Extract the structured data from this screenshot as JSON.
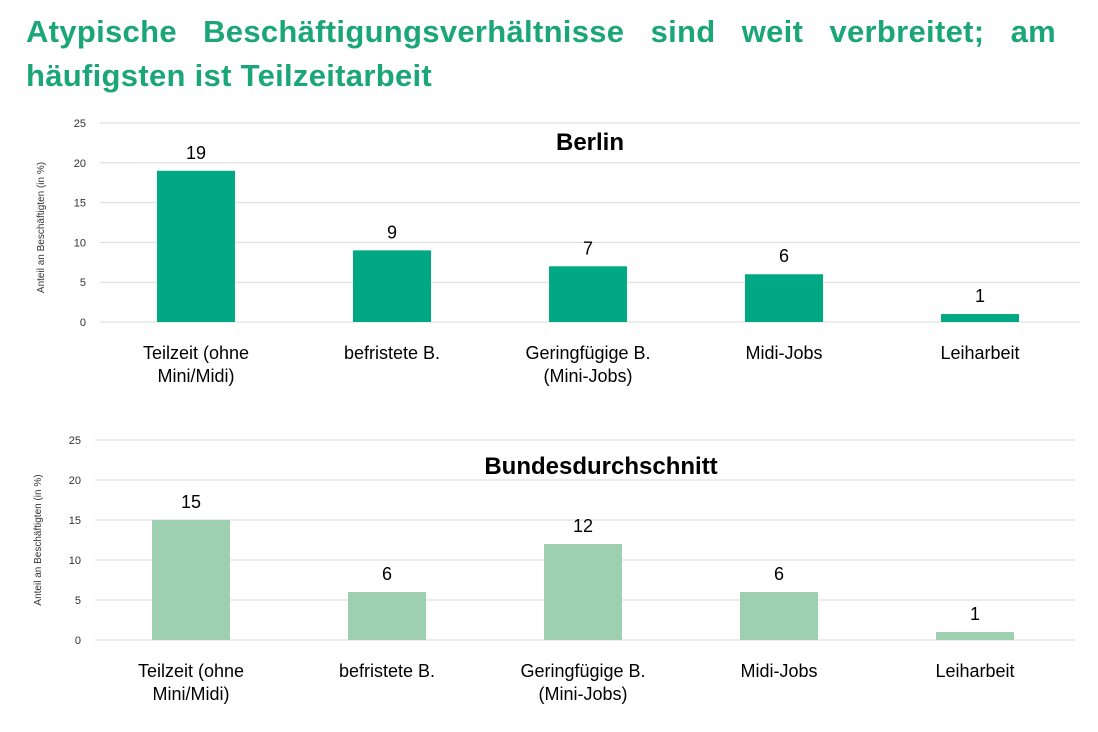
{
  "page_title": "Atypische Beschäftigungsverhältnisse sind weit verbreitet; am häufigsten ist Teilzeitarbeit",
  "chart_data": [
    {
      "type": "bar",
      "title": "Berlin",
      "ylabel": "Anteil an Beschäftigten (in %)",
      "xlabel": "",
      "categories": [
        [
          "Teilzeit (ohne",
          "Mini/Midi)"
        ],
        [
          "befristete B."
        ],
        [
          "Geringfügige B.",
          "(Mini-Jobs)"
        ],
        [
          "Midi-Jobs"
        ],
        [
          "Leiharbeit"
        ]
      ],
      "values": [
        19,
        9,
        7,
        6,
        1
      ],
      "data_labels": [
        "19",
        "9",
        "7",
        "6",
        "1"
      ],
      "ylim": [
        0,
        25
      ],
      "yticks": [
        0,
        5,
        10,
        15,
        20,
        25
      ],
      "grid": true,
      "color": "#00a884"
    },
    {
      "type": "bar",
      "title": "Bundesdurchschnitt",
      "ylabel": "Anteil an Beschäftigten (in %)",
      "xlabel": "",
      "categories": [
        [
          "Teilzeit (ohne",
          "Mini/Midi)"
        ],
        [
          "befristete B."
        ],
        [
          "Geringfügige B.",
          "(Mini-Jobs)"
        ],
        [
          "Midi-Jobs"
        ],
        [
          "Leiharbeit"
        ]
      ],
      "values": [
        15,
        6,
        12,
        6,
        1
      ],
      "data_labels": [
        "15",
        "6",
        "12",
        "6",
        "1"
      ],
      "ylim": [
        0,
        25
      ],
      "yticks": [
        0,
        5,
        10,
        15,
        20,
        25
      ],
      "grid": true,
      "color": "#9dcfb0"
    }
  ]
}
